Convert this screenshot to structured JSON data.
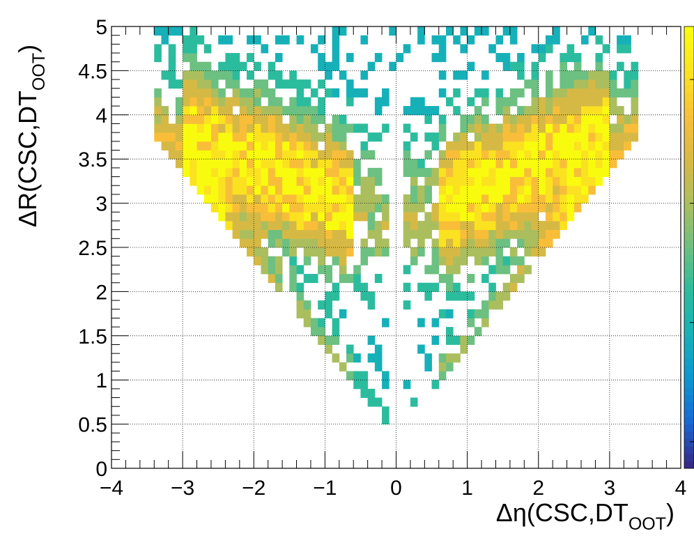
{
  "chart_data": {
    "type": "heatmap",
    "title": "",
    "xlabel": {
      "main": "Δη(CSC,DT",
      "sub": "OOT",
      "close": ")"
    },
    "ylabel": {
      "main": "ΔR(CSC,DT",
      "sub": "OOT",
      "close": ")"
    },
    "xlim": [
      -4,
      4
    ],
    "ylim": [
      0,
      5
    ],
    "x_ticks": [
      -4,
      -3,
      -2,
      -1,
      0,
      1,
      2,
      3,
      4
    ],
    "x_tick_labels": [
      "−4",
      "−3",
      "−2",
      "−1",
      "0",
      "1",
      "2",
      "3",
      "4"
    ],
    "y_ticks": [
      0,
      0.5,
      1,
      1.5,
      2,
      2.5,
      3,
      3.5,
      4,
      4.5,
      5
    ],
    "y_tick_labels": [
      "0",
      "0.5",
      "1",
      "1.5",
      "2",
      "2.5",
      "3",
      "3.5",
      "4",
      "4.5",
      "5"
    ],
    "grid": true,
    "bins": {
      "nx": 80,
      "ny": 50,
      "x_range": [
        -4,
        4
      ],
      "y_range": [
        0,
        5
      ]
    },
    "density": {
      "description_free": true,
      "bands": [
        {
          "side": "left",
          "peak": [
            [
              -2.9,
              3.7
            ],
            [
              -2.0,
              3.45
            ],
            [
              -1.0,
              3.1
            ],
            [
              -0.3,
              2.85
            ]
          ]
        },
        {
          "side": "right",
          "peak": [
            [
              0.3,
              2.85
            ],
            [
              1.0,
              3.1
            ],
            [
              2.0,
              3.45
            ],
            [
              2.9,
              3.7
            ]
          ]
        }
      ],
      "v_cone": {
        "apex": [
          0,
          0.4
        ],
        "edge_slope": 1.0,
        "max_abs_x": 3.4
      },
      "gap_near_zero": 0.12,
      "seed": 20240517
    },
    "colorbar": {
      "palette": [
        "#352a87",
        "#1768d6",
        "#0a97d0",
        "#16b0b8",
        "#2bbc9e",
        "#6cc081",
        "#abbe5e",
        "#d6b944",
        "#f8be39",
        "#fbe221",
        "#f9fb0e"
      ],
      "axis": "z"
    }
  }
}
